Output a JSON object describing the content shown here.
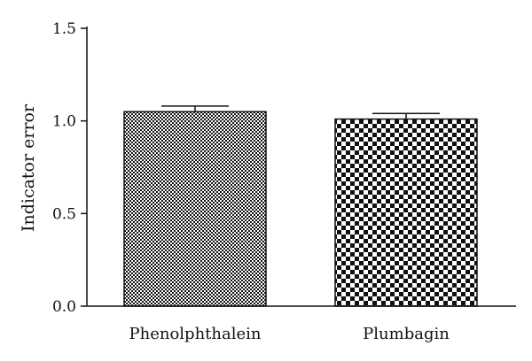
{
  "chart_data": {
    "type": "bar",
    "title": "",
    "xlabel": "",
    "ylabel": "Indicator error",
    "ylim": [
      0,
      1.5
    ],
    "yticks": [
      "0.0",
      "0.5",
      "1.0",
      "1.5"
    ],
    "categories": [
      "Phenolphthalein",
      "Plumbagin"
    ],
    "values": [
      1.05,
      1.01
    ],
    "errors": [
      0.03,
      0.03
    ],
    "patterns": [
      "fine-checkerboard",
      "coarse-checkerboard"
    ],
    "colors": {
      "dark": "#111111",
      "light": "#ffffff"
    },
    "grid": false,
    "legend": "none"
  }
}
